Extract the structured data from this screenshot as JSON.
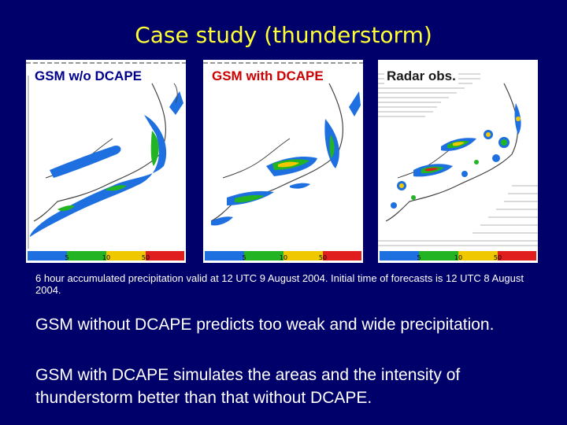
{
  "slide": {
    "title": "Case study (thunderstorm)",
    "panels": [
      {
        "label": "GSM w/o DCAPE",
        "scale_ticks": [
          "5",
          "10",
          "50"
        ]
      },
      {
        "label": "GSM with DCAPE",
        "scale_ticks": [
          "5",
          "10",
          "50"
        ]
      },
      {
        "label": "Radar obs.",
        "scale_ticks": [
          "5",
          "10",
          "50"
        ]
      }
    ],
    "caption": "6 hour accumulated precipitation valid at 12 UTC 9 August 2004.  Initial time of forecasts is 12 UTC 8 August 2004.",
    "paragraph_1": "GSM without DCAPE predicts too weak and wide precipitation.",
    "paragraph_2": "GSM with DCAPE simulates the areas and the intensity of thunderstorm better than that without DCAPE.",
    "colors": {
      "background": "#00006a",
      "title": "#ffff33",
      "scale": [
        "#1e6fe0",
        "#22b422",
        "#f0c800",
        "#e01e1e"
      ]
    }
  }
}
